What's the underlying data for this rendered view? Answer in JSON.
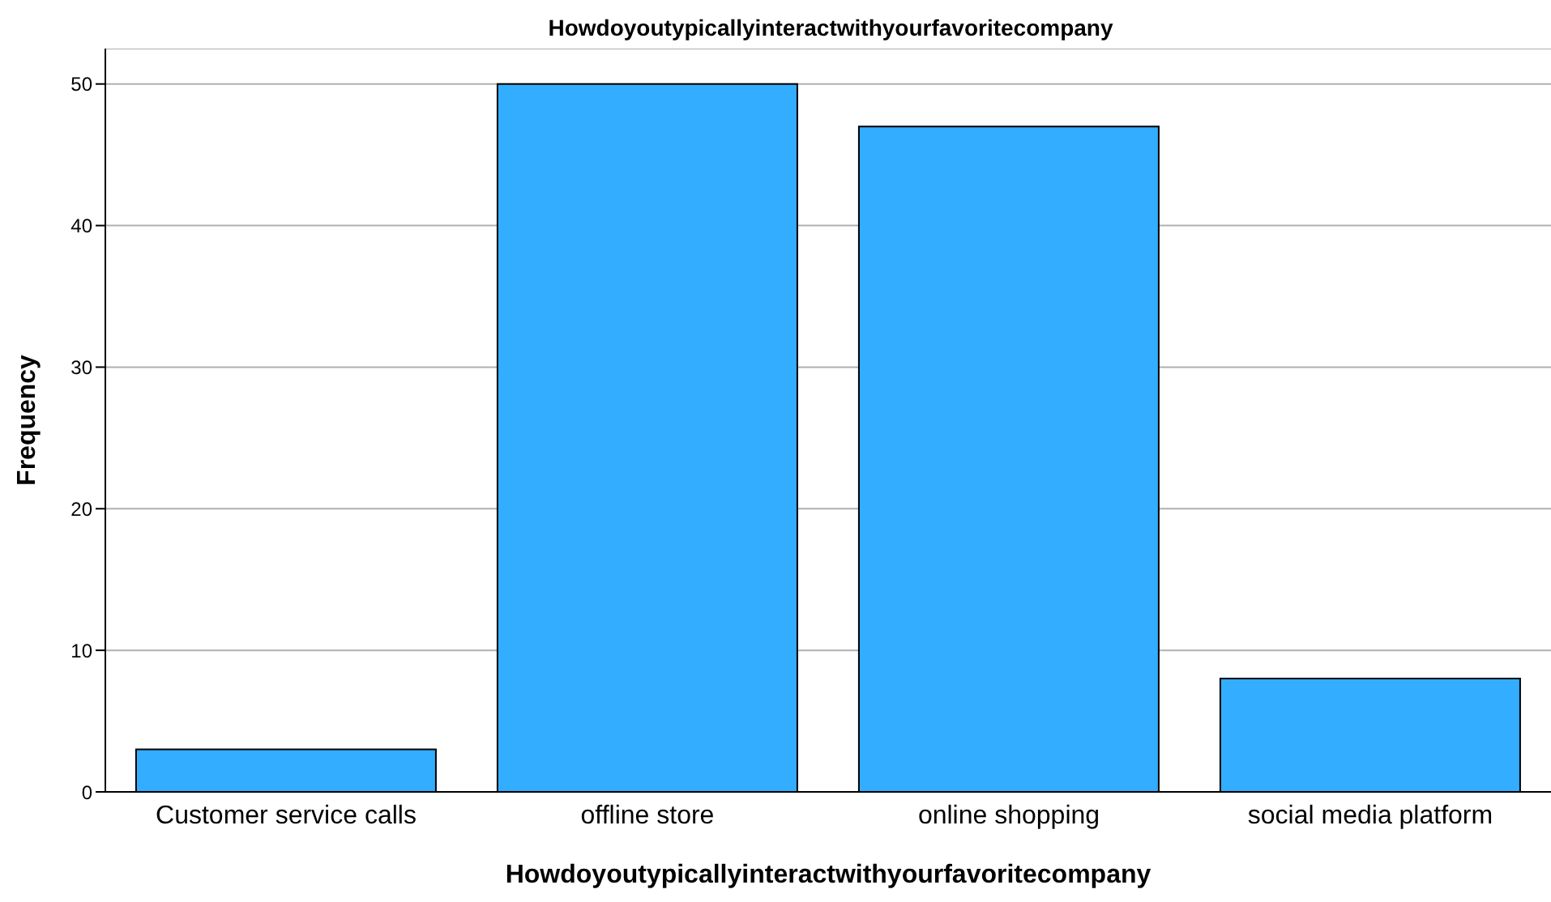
{
  "chart_data": {
    "type": "bar",
    "title": "Howdoyoutypicallyinteractwithyourfavoritecompany",
    "xlabel": "Howdoyoutypicallyinteractwithyourfavoritecompany",
    "ylabel": "Frequency",
    "categories": [
      "Customer service calls",
      "offline store",
      "online shopping",
      "social media platform"
    ],
    "values": [
      3,
      50,
      47,
      8
    ],
    "color": "#33adff",
    "ylim": [
      0,
      52.5
    ],
    "yticks": [
      0,
      10,
      20,
      30,
      40,
      50
    ],
    "grid": "y"
  }
}
